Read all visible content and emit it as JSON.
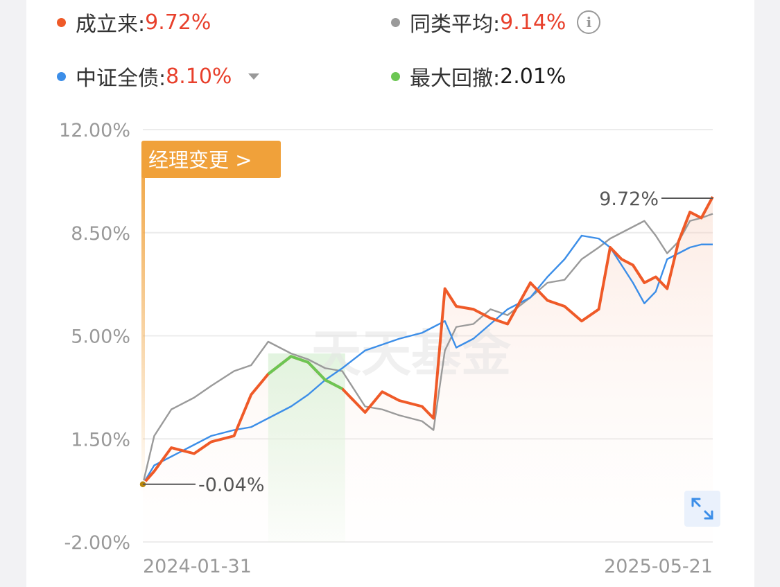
{
  "legend": {
    "fund": {
      "label": "成立来:",
      "value": "9.72%",
      "color": "#ef5a28"
    },
    "peer": {
      "label": "同类平均:",
      "value": "9.14%",
      "color": "#9a9a9a",
      "icon": "info-icon"
    },
    "benchmark": {
      "label": "中证全债:",
      "value": "8.10%",
      "color": "#3c8ee8",
      "icon": "caret-down-icon"
    },
    "drawdown": {
      "label": "最大回撤:",
      "value": "2.01%",
      "color": "#6cc653"
    }
  },
  "manager_change_label": "经理变更 >",
  "watermark": "天天基金",
  "chart_data": {
    "type": "line",
    "x_start": "2024-01-31",
    "x_end": "2025-05-21",
    "yticks": [
      "12.00%",
      "8.50%",
      "5.00%",
      "1.50%",
      "-2.00%"
    ],
    "ylim": [
      -2.0,
      12.0
    ],
    "xticks": [
      "2024-01-31",
      "2025-05-21"
    ],
    "start_annotation": "-0.04%",
    "end_annotation": "9.72%",
    "x_progress": [
      0,
      0.02,
      0.05,
      0.09,
      0.12,
      0.16,
      0.19,
      0.22,
      0.26,
      0.29,
      0.32,
      0.35,
      0.39,
      0.42,
      0.45,
      0.49,
      0.51,
      0.53,
      0.55,
      0.58,
      0.61,
      0.64,
      0.68,
      0.71,
      0.74,
      0.77,
      0.8,
      0.82,
      0.84,
      0.86,
      0.88,
      0.9,
      0.92,
      0.94,
      0.96,
      0.98,
      1.0
    ],
    "series": [
      {
        "name": "成立来",
        "values": [
          -0.04,
          0.4,
          1.2,
          1.0,
          1.4,
          1.6,
          3.0,
          3.7,
          4.3,
          4.1,
          3.5,
          3.2,
          2.4,
          3.1,
          2.8,
          2.6,
          2.2,
          6.6,
          6.0,
          5.9,
          5.6,
          5.4,
          6.8,
          6.2,
          6.0,
          5.5,
          5.9,
          8.0,
          7.6,
          7.4,
          6.8,
          7.0,
          6.6,
          8.2,
          9.2,
          9.0,
          9.72
        ]
      },
      {
        "name": "同类平均",
        "values": [
          -0.04,
          1.6,
          2.5,
          2.9,
          3.3,
          3.8,
          4.0,
          4.8,
          4.4,
          4.2,
          3.9,
          3.8,
          2.6,
          2.5,
          2.3,
          2.1,
          1.8,
          4.5,
          5.3,
          5.4,
          5.9,
          5.7,
          6.3,
          6.8,
          6.9,
          7.6,
          8.0,
          8.3,
          8.5,
          8.7,
          8.9,
          8.4,
          7.8,
          8.2,
          8.9,
          9.0,
          9.14
        ]
      },
      {
        "name": "中证全债",
        "values": [
          -0.04,
          0.6,
          0.9,
          1.3,
          1.6,
          1.8,
          1.9,
          2.2,
          2.6,
          3.0,
          3.5,
          3.9,
          4.5,
          4.7,
          4.9,
          5.1,
          5.3,
          5.5,
          4.6,
          4.9,
          5.4,
          5.9,
          6.3,
          7.0,
          7.6,
          8.4,
          8.3,
          8.0,
          7.4,
          6.8,
          6.1,
          6.5,
          7.6,
          7.8,
          8.0,
          8.1,
          8.1
        ]
      }
    ],
    "max_drawdown_segment": {
      "from_progress": 0.22,
      "to_progress": 0.355,
      "color": "#6cc653"
    },
    "grid": true
  }
}
